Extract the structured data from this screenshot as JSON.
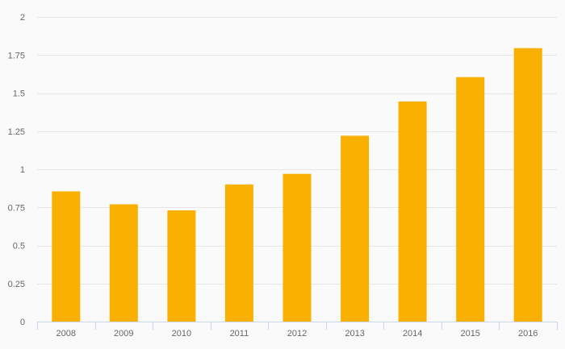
{
  "chart_data": {
    "type": "bar",
    "categories": [
      "2008",
      "2009",
      "2010",
      "2011",
      "2012",
      "2013",
      "2014",
      "2015",
      "2016"
    ],
    "values": [
      0.855,
      0.77,
      0.73,
      0.9,
      0.97,
      1.22,
      1.445,
      1.605,
      1.795
    ],
    "title": "",
    "xlabel": "",
    "ylabel": "",
    "ylim": [
      0,
      2
    ],
    "y_ticks": [
      0,
      0.25,
      0.5,
      0.75,
      1,
      1.25,
      1.5,
      1.75,
      2
    ],
    "y_tick_labels": [
      "0",
      "0.25",
      "0.5",
      "0.75",
      "1",
      "1.25",
      "1.5",
      "1.75",
      "2"
    ],
    "grid": true,
    "legend": "none",
    "colors": {
      "bar": "#f9b000",
      "gridline": "#e6e6e6",
      "axis": "#ccd6eb",
      "tick_label": "#666666",
      "background": "#fafafa"
    }
  }
}
